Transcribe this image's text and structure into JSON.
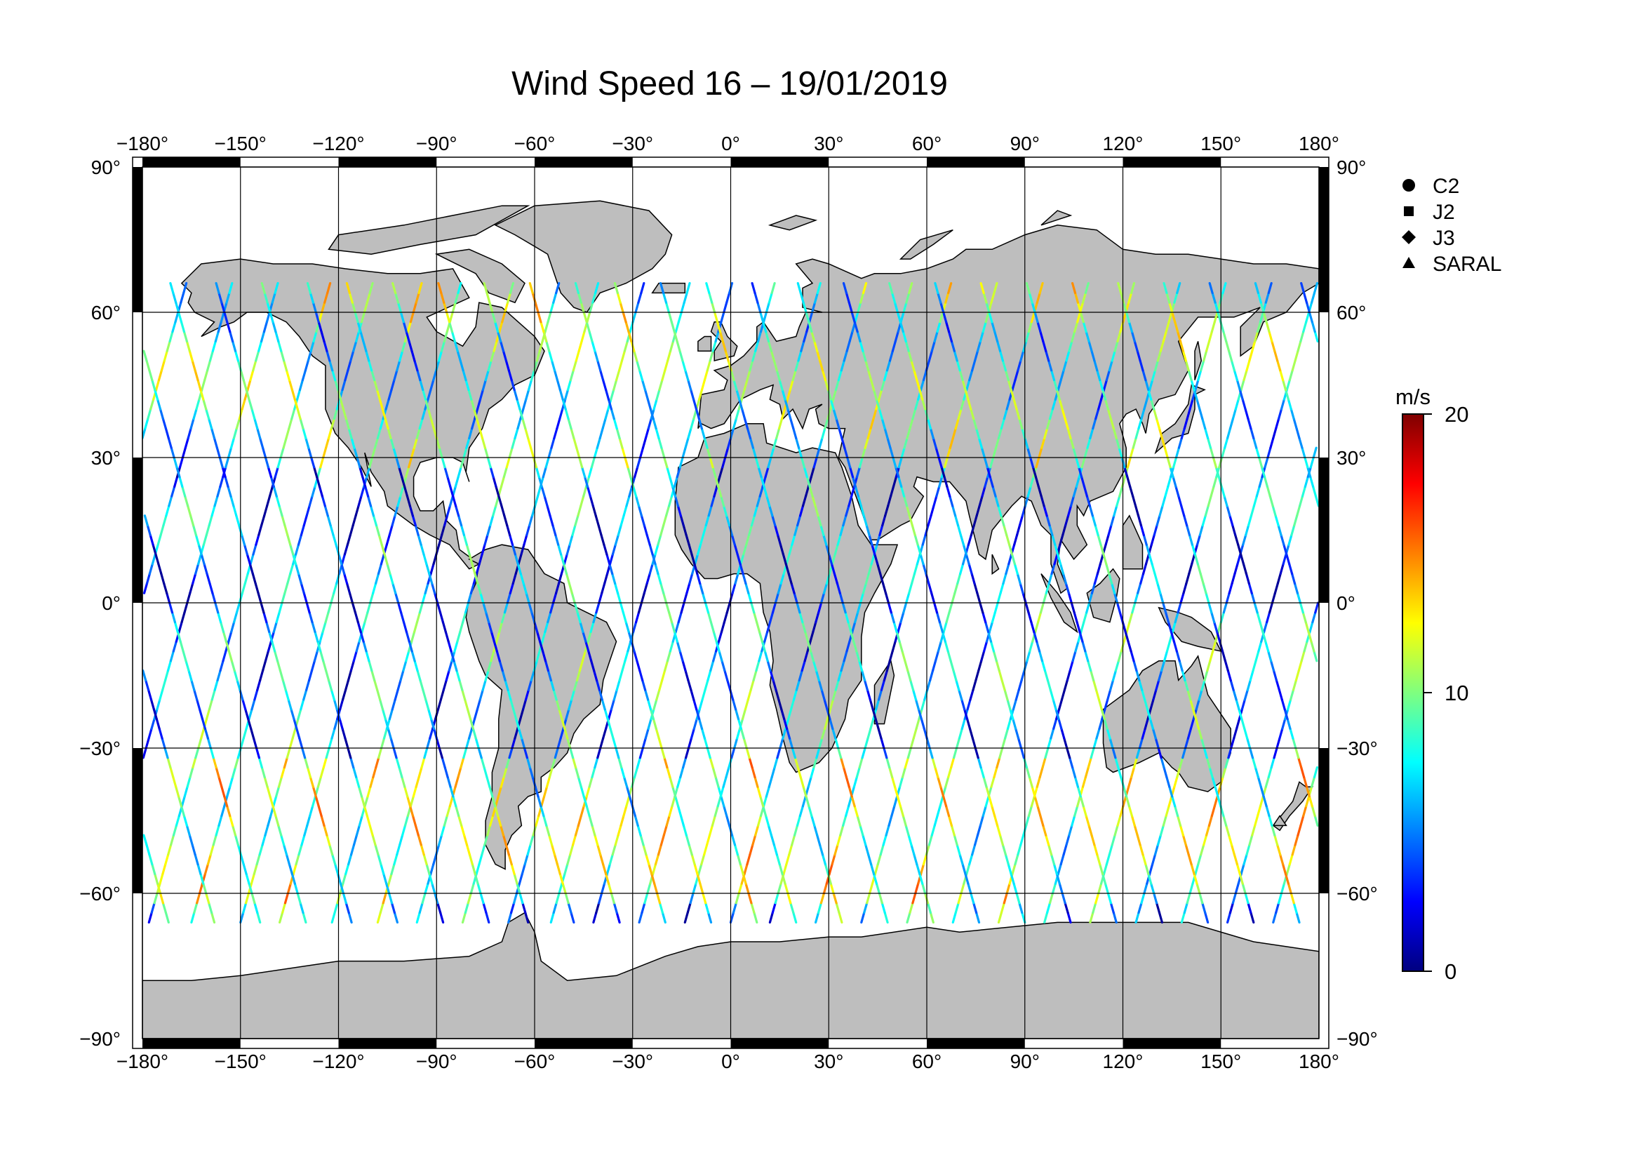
{
  "title": "Wind Speed 16 – 19/01/2019",
  "map": {
    "projection": "equirectangular",
    "lon_range": [
      -180,
      180
    ],
    "lat_range": [
      -90,
      90
    ],
    "grid": true,
    "land_color": "#bebebe",
    "ocean_color": "#ffffff",
    "frame_style": "alternating black/white border"
  },
  "axes": {
    "lon_ticks": [
      -180,
      -150,
      -120,
      -90,
      -60,
      -30,
      0,
      30,
      60,
      90,
      120,
      150,
      180
    ],
    "lon_labels": [
      "−180°",
      "−150°",
      "−120°",
      "−90°",
      "−60°",
      "−30°",
      "0°",
      "30°",
      "60°",
      "90°",
      "120°",
      "150°",
      "180°"
    ],
    "lat_ticks": [
      90,
      60,
      30,
      0,
      -30,
      -60,
      -90
    ],
    "lat_labels": [
      "90°",
      "60°",
      "30°",
      "0°",
      "−30°",
      "−60°",
      "−90°"
    ]
  },
  "legend": {
    "placement": "right",
    "items": [
      {
        "label": "C2",
        "marker": "circle"
      },
      {
        "label": "J2",
        "marker": "square"
      },
      {
        "label": "J3",
        "marker": "diamond"
      },
      {
        "label": "SARAL",
        "marker": "triangle"
      }
    ]
  },
  "colorbar": {
    "unit": "m/s",
    "min": 0,
    "max": 20,
    "tick_labels": [
      "20",
      "10",
      "0"
    ],
    "tick_values": [
      20,
      10,
      0
    ],
    "colormap": "jet",
    "colors": [
      "#00007f",
      "#0000ff",
      "#007fff",
      "#00ffff",
      "#7fff7f",
      "#ffff00",
      "#ff7f00",
      "#ff0000",
      "#7f0000"
    ]
  },
  "chart_data": {
    "type": "scatter",
    "title": "Wind Speed 16 – 19/01/2019",
    "xlim": [
      -180,
      180
    ],
    "ylim": [
      -90,
      90
    ],
    "value_range": [
      0,
      20
    ],
    "value_unit": "m/s",
    "track_latitude_limits": [
      -66,
      66
    ],
    "ascending_track_start_longitudes": [
      -178,
      -165,
      -150,
      -138,
      -122,
      -108,
      -96,
      -82,
      -68,
      -55,
      -42,
      -28,
      -14,
      0,
      12,
      26,
      40,
      54,
      68,
      82,
      96,
      110,
      124,
      138,
      152,
      166
    ],
    "descending_track_start_longitudes": [
      -172,
      -158,
      -144,
      -130,
      -116,
      -102,
      -88,
      -74,
      -62,
      -48,
      -34,
      -20,
      -6,
      8,
      20,
      34,
      48,
      62,
      76,
      90,
      104,
      118,
      132,
      146,
      160,
      174
    ],
    "typical_speed_by_latitude_band": [
      {
        "band": "60 to 66",
        "speed": 9
      },
      {
        "band": "30 to 60",
        "speed": 8
      },
      {
        "band": "0 to 30",
        "speed": 5
      },
      {
        "band": "-30 to 0",
        "speed": 6
      },
      {
        "band": "-60 to -30",
        "speed": 10
      },
      {
        "band": "-66 to -60",
        "speed": 6
      }
    ]
  }
}
